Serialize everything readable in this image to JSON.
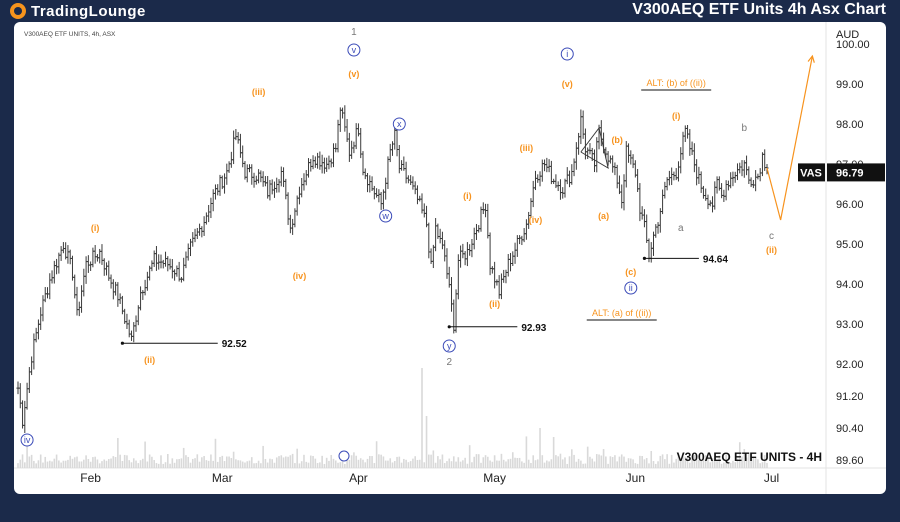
{
  "header": {
    "logo_text_big": "TradingLounge",
    "title": "V300AEQ ETF Units 4h Asx Chart"
  },
  "chart_meta": {
    "symbol_caption": "V300AEQ ETF UNITS, 4h, ASX",
    "footer_label": "V300AEQ ETF UNITS - 4H",
    "currency": "AUD",
    "last_symbol": "VAS",
    "last_price": "96.79",
    "colors": {
      "candle": "#3a3a3a",
      "wave_orange": "#f7931e",
      "wave_blue": "#3b4bb8",
      "volume": "#d9d9d9",
      "frame": "#1b2a4a"
    }
  },
  "chart_data": {
    "type": "ohlc",
    "ylim": [
      89.4,
      100.4
    ],
    "y_ticks": [
      "100.00",
      "99.00",
      "98.00",
      "97.00",
      "96.00",
      "95.00",
      "94.00",
      "93.00",
      "92.00",
      "91.20",
      "90.40",
      "89.60"
    ],
    "x_ticks": [
      {
        "label": "Feb",
        "t": 16
      },
      {
        "label": "Mar",
        "t": 45
      },
      {
        "label": "Apr",
        "t": 75
      },
      {
        "label": "May",
        "t": 105
      },
      {
        "label": "Jun",
        "t": 136
      },
      {
        "label": "Jul",
        "t": 166
      }
    ],
    "price_path": [
      [
        0,
        91.4
      ],
      [
        1,
        90.6
      ],
      [
        3,
        92.2
      ],
      [
        5,
        93.3
      ],
      [
        7,
        94.1
      ],
      [
        10,
        95.0
      ],
      [
        12,
        94.3
      ],
      [
        13,
        93.2
      ],
      [
        15,
        94.5
      ],
      [
        18,
        94.8
      ],
      [
        20,
        94.2
      ],
      [
        22,
        93.7
      ],
      [
        25,
        92.6
      ],
      [
        27,
        93.8
      ],
      [
        30,
        94.6
      ],
      [
        33,
        94.5
      ],
      [
        36,
        94.2
      ],
      [
        38,
        94.9
      ],
      [
        41,
        95.6
      ],
      [
        43,
        96.2
      ],
      [
        46,
        96.8
      ],
      [
        48,
        97.7
      ],
      [
        50,
        96.8
      ],
      [
        53,
        96.7
      ],
      [
        55,
        96.3
      ],
      [
        58,
        96.8
      ],
      [
        60,
        95.4
      ],
      [
        62,
        96.4
      ],
      [
        65,
        97.2
      ],
      [
        68,
        97.0
      ],
      [
        70,
        97.4
      ],
      [
        71,
        98.4
      ],
      [
        73,
        97.3
      ],
      [
        75,
        97.9
      ],
      [
        76,
        96.9
      ],
      [
        78,
        96.4
      ],
      [
        80,
        96.0
      ],
      [
        82,
        97.3
      ],
      [
        83,
        97.7
      ],
      [
        84,
        96.9
      ],
      [
        86,
        96.6
      ],
      [
        88,
        96.1
      ],
      [
        90,
        95.5
      ],
      [
        91,
        94.4
      ],
      [
        92,
        95.4
      ],
      [
        94,
        94.7
      ],
      [
        96,
        93.0
      ],
      [
        97,
        94.6
      ],
      [
        99,
        94.8
      ],
      [
        101,
        95.4
      ],
      [
        103,
        96.0
      ],
      [
        104,
        94.5
      ],
      [
        106,
        93.8
      ],
      [
        108,
        94.5
      ],
      [
        110,
        95.0
      ],
      [
        112,
        95.5
      ],
      [
        114,
        96.7
      ],
      [
        116,
        97.0
      ],
      [
        117,
        96.8
      ],
      [
        118,
        96.6
      ],
      [
        120,
        96.4
      ],
      [
        122,
        96.8
      ],
      [
        124,
        98.1
      ],
      [
        125,
        97.4
      ],
      [
        127,
        97.0
      ],
      [
        128,
        97.8
      ],
      [
        130,
        97.2
      ],
      [
        132,
        96.6
      ],
      [
        133,
        96.1
      ],
      [
        134,
        97.3
      ],
      [
        136,
        96.8
      ],
      [
        137,
        95.9
      ],
      [
        138,
        95.4
      ],
      [
        139,
        94.7
      ],
      [
        140,
        95.2
      ],
      [
        141,
        95.6
      ],
      [
        143,
        96.6
      ],
      [
        145,
        96.8
      ],
      [
        147,
        97.8
      ],
      [
        148,
        97.4
      ],
      [
        150,
        96.6
      ],
      [
        151,
        96.3
      ],
      [
        153,
        96.0
      ],
      [
        154,
        96.5
      ],
      [
        155,
        96.2
      ],
      [
        156,
        96.5
      ],
      [
        158,
        96.8
      ],
      [
        160,
        97.0
      ],
      [
        161,
        96.6
      ],
      [
        163,
        96.7
      ],
      [
        164,
        97.2
      ],
      [
        165,
        96.9
      ]
    ],
    "projection": [
      [
        165,
        96.9
      ],
      [
        168,
        95.6
      ],
      [
        175,
        99.7
      ]
    ],
    "levels": [
      {
        "label": "92.52",
        "t0": 23,
        "t1": 44,
        "y": 92.52
      },
      {
        "label": "92.93",
        "t0": 95,
        "t1": 110,
        "y": 92.93
      },
      {
        "label": "94.64",
        "t0": 138,
        "t1": 150,
        "y": 94.64
      }
    ],
    "wave_labels": [
      {
        "text": "1",
        "t": 74,
        "y": 100.3,
        "style": "gray"
      },
      {
        "text": "v",
        "t": 74,
        "y": 99.85,
        "style": "blue"
      },
      {
        "text": "(v)",
        "t": 74,
        "y": 99.25,
        "style": "orange"
      },
      {
        "text": "(iii)",
        "t": 53,
        "y": 98.8,
        "style": "orange"
      },
      {
        "text": "x",
        "t": 84,
        "y": 98.0,
        "style": "blue"
      },
      {
        "text": "w",
        "t": 81,
        "y": 95.7,
        "style": "blue"
      },
      {
        "text": "(i)",
        "t": 17,
        "y": 95.4,
        "style": "orange"
      },
      {
        "text": "(iv)",
        "t": 62,
        "y": 94.2,
        "style": "orange"
      },
      {
        "text": "(ii)",
        "t": 29,
        "y": 92.1,
        "style": "orange"
      },
      {
        "text": "iv",
        "t": 2,
        "y": 90.1,
        "style": "blue"
      },
      {
        "text": "y",
        "t": 95,
        "y": 92.45,
        "style": "blue"
      },
      {
        "text": "2",
        "t": 95,
        "y": 92.05,
        "style": "gray"
      },
      {
        "text": "(i)",
        "t": 99,
        "y": 96.2,
        "style": "orange"
      },
      {
        "text": "(ii)",
        "t": 105,
        "y": 93.5,
        "style": "orange"
      },
      {
        "text": "(iii)",
        "t": 112,
        "y": 97.4,
        "style": "orange"
      },
      {
        "text": "(iv)",
        "t": 114,
        "y": 95.6,
        "style": "orange"
      },
      {
        "text": "i",
        "t": 121,
        "y": 99.75,
        "style": "blue"
      },
      {
        "text": "(v)",
        "t": 121,
        "y": 99.0,
        "style": "orange"
      },
      {
        "text": "(b)",
        "t": 132,
        "y": 97.6,
        "style": "orange"
      },
      {
        "text": "(a)",
        "t": 129,
        "y": 95.7,
        "style": "orange"
      },
      {
        "text": "(c)",
        "t": 135,
        "y": 94.3,
        "style": "orange"
      },
      {
        "text": "ii",
        "t": 135,
        "y": 93.9,
        "style": "blue"
      },
      {
        "text": "(i)",
        "t": 145,
        "y": 98.2,
        "style": "orange"
      },
      {
        "text": "a",
        "t": 146,
        "y": 95.4,
        "style": "gray"
      },
      {
        "text": "b",
        "t": 160,
        "y": 97.9,
        "style": "gray"
      },
      {
        "text": "c",
        "t": 166,
        "y": 95.2,
        "style": "gray"
      },
      {
        "text": "(ii)",
        "t": 166,
        "y": 94.85,
        "style": "orange"
      }
    ],
    "alt_labels": [
      {
        "text": "ALT: (b) of ((ii))",
        "t": 145,
        "y": 98.95
      },
      {
        "text": "ALT: (a) of ((ii))",
        "t": 133,
        "y": 93.2
      }
    ]
  }
}
